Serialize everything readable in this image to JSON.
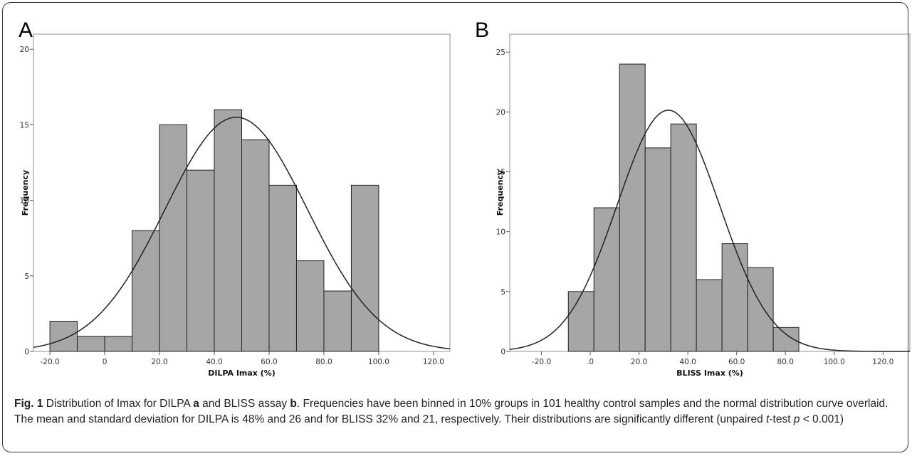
{
  "chart_data": [
    {
      "type": "bar",
      "panel_label": "A",
      "xlabel": "DILPA Imax (%)",
      "ylabel": "Frequency",
      "x_ticks": [
        "-20.0",
        "0",
        "20.0",
        "40.0",
        "60.0",
        "80.0",
        "100.0",
        "120.0"
      ],
      "x_tick_values": [
        -20,
        0,
        20,
        40,
        60,
        80,
        100,
        120
      ],
      "y_ticks": [
        "0",
        "5",
        "10",
        "15",
        "20"
      ],
      "y_tick_values": [
        0,
        5,
        10,
        15,
        20
      ],
      "xlim": [
        -26,
        126
      ],
      "ylim": [
        0,
        21
      ],
      "bin_width": 10,
      "bins": [
        {
          "from": -20,
          "to": -10,
          "value": 2
        },
        {
          "from": -10,
          "to": 0,
          "value": 1
        },
        {
          "from": 0,
          "to": 10,
          "value": 1
        },
        {
          "from": 10,
          "to": 20,
          "value": 8
        },
        {
          "from": 20,
          "to": 30,
          "value": 15
        },
        {
          "from": 30,
          "to": 40,
          "value": 12
        },
        {
          "from": 40,
          "to": 50,
          "value": 16
        },
        {
          "from": 50,
          "to": 60,
          "value": 14
        },
        {
          "from": 60,
          "to": 70,
          "value": 11
        },
        {
          "from": 70,
          "to": 80,
          "value": 6
        },
        {
          "from": 80,
          "to": 90,
          "value": 4
        },
        {
          "from": 90,
          "to": 100,
          "value": 11
        }
      ],
      "normal_curve": {
        "mean": 48,
        "sd": 26,
        "n": 101
      },
      "grid": false
    },
    {
      "type": "bar",
      "panel_label": "B",
      "xlabel": "BLISS Imax (%)",
      "ylabel": "Frequency",
      "x_ticks": [
        "-20.0",
        ".0",
        "20.0",
        "40.0",
        "60.0",
        "80.0",
        "100.0",
        "120.0"
      ],
      "x_tick_values": [
        -20,
        0,
        20,
        40,
        60,
        80,
        100,
        120
      ],
      "y_ticks": [
        "0",
        "5",
        "10",
        "15",
        "20",
        "25"
      ],
      "y_tick_values": [
        0,
        5,
        10,
        15,
        20,
        25
      ],
      "xlim": [
        -33,
        131
      ],
      "ylim": [
        0,
        26.5
      ],
      "bin_width": 10.5,
      "bins": [
        {
          "from": -9,
          "to": 1.5,
          "value": 5
        },
        {
          "from": 1.5,
          "to": 12,
          "value": 12
        },
        {
          "from": 12,
          "to": 22.5,
          "value": 24
        },
        {
          "from": 22.5,
          "to": 33,
          "value": 17
        },
        {
          "from": 33,
          "to": 43.5,
          "value": 19
        },
        {
          "from": 43.5,
          "to": 54,
          "value": 6
        },
        {
          "from": 54,
          "to": 64.5,
          "value": 9
        },
        {
          "from": 64.5,
          "to": 75,
          "value": 7
        },
        {
          "from": 75,
          "to": 85.5,
          "value": 2
        }
      ],
      "normal_curve": {
        "mean": 32,
        "sd": 21,
        "n": 101
      },
      "grid": false
    }
  ],
  "caption": {
    "fig_label": "Fig. 1",
    "part1": " Distribution of Imax for DILPA ",
    "a": "a",
    "part2": " and BLISS assay ",
    "b": "b",
    "part3": ". Frequencies have been binned in 10% groups in 101 healthy control samples and the normal distribution curve overlaid. The mean and standard deviation for DILPA is 48% and 26 and for BLISS 32% and 21, respectively. Their distributions are significantly different (unpaired ",
    "t": "t",
    "part4": "-test ",
    "p": "p",
    "part5": " < 0.001)"
  },
  "colors": {
    "bar_fill": "#a6a6a6",
    "bar_stroke": "#222222",
    "curve": "#222222",
    "axis": "#555555"
  }
}
